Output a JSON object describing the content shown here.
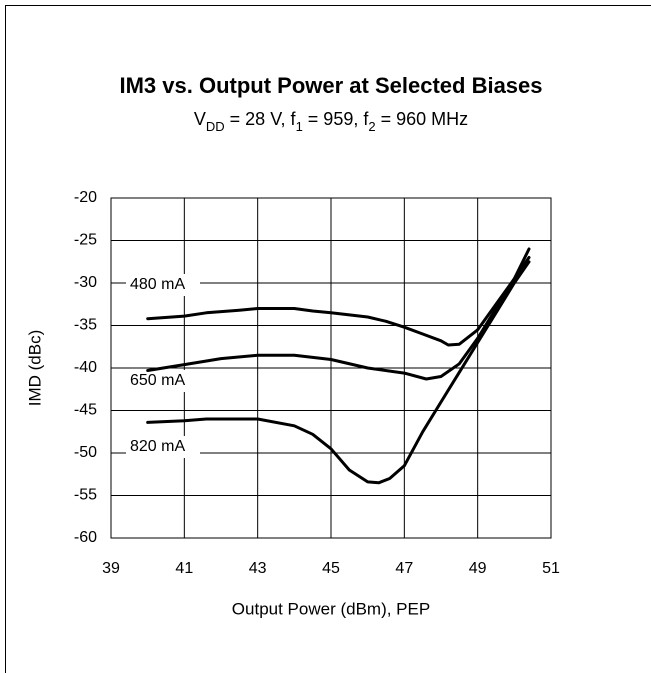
{
  "chart_data": {
    "type": "line",
    "title": "IM3 vs. Output Power at Selected Biases",
    "subtitle": [
      "V",
      "DD",
      " = 28 V, f",
      "1",
      " = 959, f",
      "2",
      " = 960 MHz"
    ],
    "x_label": "Output Power (dBm), PEP",
    "y_label": "IMD (dBc)",
    "xlim": [
      39,
      51
    ],
    "xticks": [
      39,
      41,
      43,
      45,
      47,
      49,
      51
    ],
    "ylim": [
      -60,
      -20
    ],
    "yticks": [
      -60,
      -55,
      -50,
      -45,
      -40,
      -35,
      -30,
      -25,
      -20
    ],
    "grid": true,
    "series": [
      {
        "name": "480 mA",
        "color": "#000000",
        "x": [
          40,
          41,
          41.6,
          42.5,
          43,
          44,
          44.5,
          45,
          46,
          46.5,
          47,
          47.5,
          48,
          48.2,
          48.5,
          49,
          49.5,
          50,
          50.4
        ],
        "values": [
          -34.2,
          -33.9,
          -33.5,
          -33.2,
          -33.0,
          -33.0,
          -33.3,
          -33.5,
          -34.0,
          -34.5,
          -35.2,
          -36.0,
          -36.8,
          -37.3,
          -37.2,
          -35.5,
          -32.5,
          -29.5,
          -27.0
        ]
      },
      {
        "name": "650 mA",
        "color": "#000000",
        "x": [
          40,
          41,
          42,
          43,
          44,
          45,
          46,
          47,
          47.6,
          48,
          48.5,
          49,
          49.5,
          50,
          50.4
        ],
        "values": [
          -40.3,
          -39.6,
          -38.9,
          -38.5,
          -38.5,
          -39.0,
          -40.0,
          -40.6,
          -41.3,
          -41.0,
          -39.5,
          -36.5,
          -33.0,
          -29.5,
          -26.0
        ]
      },
      {
        "name": "820 mA",
        "color": "#000000",
        "x": [
          40,
          41,
          41.6,
          43,
          44,
          44.5,
          45,
          45.5,
          46,
          46.3,
          46.6,
          47,
          47.5,
          48,
          48.5,
          49,
          49.5,
          50,
          50.4
        ],
        "values": [
          -46.4,
          -46.2,
          -46.0,
          -46.0,
          -46.8,
          -47.8,
          -49.5,
          -52.0,
          -53.4,
          -53.5,
          -53.0,
          -51.5,
          -47.5,
          -44.0,
          -40.5,
          -37.0,
          -33.5,
          -30.0,
          -27.5
        ]
      }
    ]
  }
}
